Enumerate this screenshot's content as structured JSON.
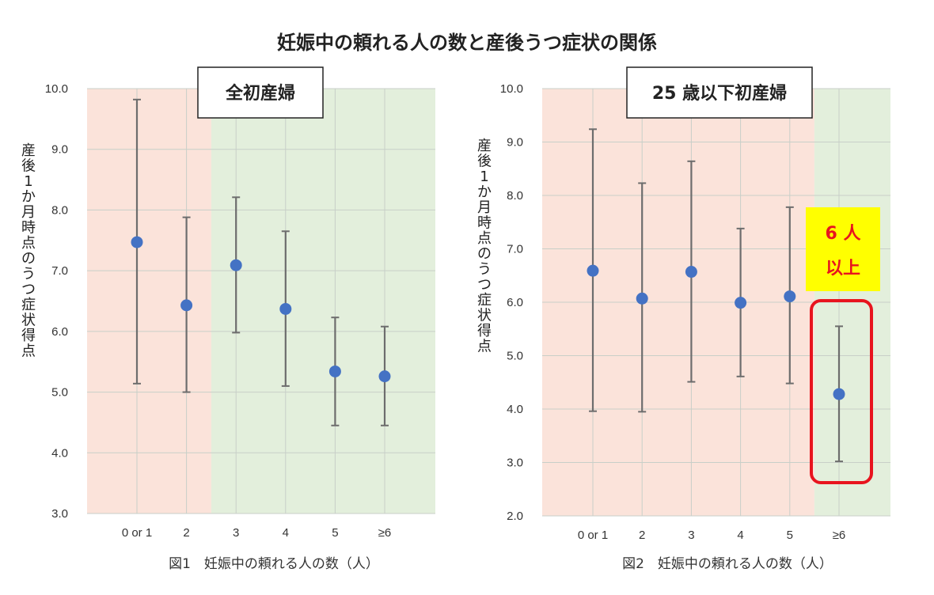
{
  "main_title": "妊娠中の頼れる人の数と産後うつ症状の関係",
  "colors": {
    "pink_band": "#fbe3da",
    "green_band": "#e3efdc",
    "point": "#4472c4",
    "errorbar": "#6d6d6d",
    "gridline": "#c8cfc8",
    "highlight_box": "#e8141e",
    "highlight_label_bg": "#ffff00",
    "highlight_label_text": "#e8141e"
  },
  "chart_data": [
    {
      "type": "scatter",
      "title": "全初産婦",
      "caption": "図1　妊娠中の頼れる人の数（人）",
      "ylabel": "産後1か月時点のうつ症状得点",
      "categories": [
        "0 or 1",
        "2",
        "3",
        "4",
        "5",
        "≥6"
      ],
      "y_ticks": [
        "3.0",
        "4.0",
        "5.0",
        "6.0",
        "7.0",
        "8.0",
        "9.0",
        "10.0"
      ],
      "ylim": [
        3,
        10
      ],
      "values": [
        7.47,
        6.43,
        7.09,
        6.37,
        5.34,
        5.26
      ],
      "error_low": [
        5.14,
        5.0,
        5.98,
        5.1,
        4.45,
        4.45
      ],
      "error_high": [
        9.82,
        7.88,
        8.21,
        7.65,
        6.23,
        6.08
      ],
      "pink_categories": [
        "0 or 1",
        "2"
      ],
      "green_categories": [
        "3",
        "4",
        "5",
        "≥6"
      ],
      "grid": true
    },
    {
      "type": "scatter",
      "title": "25 歳以下初産婦",
      "caption": "図2　妊娠中の頼れる人の数（人）",
      "ylabel": "産後1か月時点のうつ症状得点",
      "categories": [
        "0 or 1",
        "2",
        "3",
        "4",
        "5",
        "≥6"
      ],
      "y_ticks": [
        "2.0",
        "3.0",
        "4.0",
        "5.0",
        "6.0",
        "7.0",
        "8.0",
        "9.0",
        "10.0"
      ],
      "ylim": [
        2,
        10
      ],
      "values": [
        6.59,
        6.07,
        6.57,
        5.99,
        6.11,
        4.28
      ],
      "error_low": [
        3.96,
        3.95,
        4.51,
        4.61,
        4.48,
        3.02
      ],
      "error_high": [
        9.24,
        8.23,
        8.64,
        7.38,
        7.78,
        5.55
      ],
      "pink_categories": [
        "0 or 1",
        "2",
        "3",
        "4",
        "5"
      ],
      "green_categories": [
        "≥6"
      ],
      "grid": true,
      "highlight": {
        "category": "≥6",
        "label_line1": "6 人",
        "label_line2": "以上"
      }
    }
  ]
}
